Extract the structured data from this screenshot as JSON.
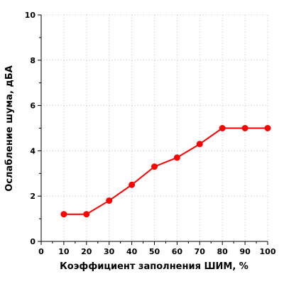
{
  "chart_data": {
    "type": "line",
    "xlabel": "Коэффициент заполнения ШИМ, %",
    "ylabel": "Ослабление шума, дБА",
    "xlim": [
      0,
      100
    ],
    "ylim": [
      0,
      10
    ],
    "x_ticks": [
      0,
      10,
      20,
      30,
      40,
      50,
      60,
      70,
      80,
      90,
      100
    ],
    "y_ticks": [
      0,
      2,
      4,
      6,
      8,
      10
    ],
    "x_tick_labels": [
      "0",
      "10",
      "20",
      "30",
      "40",
      "50",
      "60",
      "70",
      "80",
      "90",
      "100"
    ],
    "y_tick_labels": [
      "0",
      "2",
      "4",
      "6",
      "8",
      "10"
    ],
    "grid": true,
    "grid_style": "dotted",
    "series": [
      {
        "x": [
          10,
          20,
          30,
          40,
          50,
          60,
          70,
          80,
          90,
          100
        ],
        "values": [
          1.2,
          1.2,
          1.8,
          2.5,
          3.3,
          3.7,
          4.3,
          5.0,
          5.0,
          5.0
        ],
        "color": "#ff0000",
        "marker": "circle"
      }
    ]
  }
}
